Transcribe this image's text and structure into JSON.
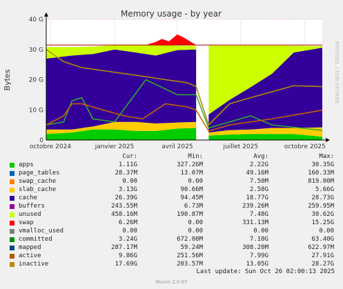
{
  "chart_data": {
    "type": "area",
    "title": "Memory usage - by year",
    "ylabel": "Bytes",
    "watermark": "RRDTOOL / TOBI OETIKER",
    "ylim": [
      0,
      40
    ],
    "yunit": "G",
    "y_ticks": [
      "0",
      "10 G",
      "20 G",
      "30 G",
      "40 G"
    ],
    "x_ticks": [
      "octobre 2024",
      "janvier 2025",
      "avril 2025",
      "juillet 2025",
      "octobre 2025"
    ],
    "no_data_gap": [
      "2025-04-28",
      "2025-05-16"
    ],
    "reference_line_G": 31.5,
    "stacked_areas": [
      {
        "name": "apps",
        "color": "#00cc00",
        "x": [
          "2024-09-25",
          "2024-11-01",
          "2024-12-01",
          "2025-01-01",
          "2025-02-01",
          "2025-03-01",
          "2025-04-01",
          "2025-04-28",
          "2025-05-16",
          "2025-06-15",
          "2025-07-15",
          "2025-08-15",
          "2025-09-15",
          "2025-10-26"
        ],
        "y": [
          2.0,
          2.5,
          3.5,
          3.5,
          3.0,
          3.0,
          3.8,
          4.0,
          1.5,
          1.8,
          2.0,
          2.0,
          2.0,
          1.1
        ]
      },
      {
        "name": "slab_cache",
        "color": "#ffcc00",
        "x": [
          "2024-09-25",
          "2024-11-01",
          "2024-12-01",
          "2025-01-01",
          "2025-02-01",
          "2025-03-01",
          "2025-04-01",
          "2025-04-28",
          "2025-05-16",
          "2025-06-15",
          "2025-07-15",
          "2025-08-15",
          "2025-09-15",
          "2025-10-26"
        ],
        "y": [
          1.5,
          1.0,
          1.0,
          2.5,
          3.0,
          2.5,
          2.0,
          2.0,
          1.0,
          1.5,
          1.5,
          2.0,
          2.0,
          3.1
        ]
      },
      {
        "name": "cache",
        "color": "#330099",
        "x": [
          "2024-09-25",
          "2024-11-01",
          "2024-12-01",
          "2025-01-01",
          "2025-02-01",
          "2025-03-01",
          "2025-04-01",
          "2025-04-28",
          "2025-05-16",
          "2025-06-15",
          "2025-07-15",
          "2025-08-15",
          "2025-09-15",
          "2025-10-26"
        ],
        "y": [
          23.5,
          24.5,
          24.0,
          24.0,
          23.0,
          22.5,
          24.0,
          24.0,
          6.0,
          10.0,
          14.0,
          18.0,
          25.0,
          26.4
        ]
      },
      {
        "name": "unused",
        "color": "#ccff00",
        "x": [
          "2024-09-25",
          "2024-11-01",
          "2024-12-01",
          "2025-01-01",
          "2025-02-01",
          "2025-03-01",
          "2025-04-01",
          "2025-04-28",
          "2025-05-16",
          "2025-06-15",
          "2025-07-15",
          "2025-08-15",
          "2025-09-15",
          "2025-10-26"
        ],
        "y": [
          3.8,
          2.8,
          2.5,
          1.5,
          2.5,
          3.5,
          1.5,
          1.2,
          22.8,
          18.0,
          13.8,
          9.3,
          2.3,
          0.5
        ]
      }
    ],
    "lines": [
      {
        "name": "committed",
        "color": "#33aa33",
        "x": [
          "2024-09-25",
          "2024-10-20",
          "2024-11-01",
          "2024-11-15",
          "2024-12-01",
          "2025-01-01",
          "2025-02-15",
          "2025-04-01",
          "2025-04-28",
          "2025-05-16",
          "2025-06-15",
          "2025-07-15",
          "2025-08-15",
          "2025-10-26"
        ],
        "y": [
          5,
          6,
          13,
          14,
          7,
          6,
          20,
          15,
          15,
          4,
          6,
          8,
          5,
          3.2
        ]
      },
      {
        "name": "active",
        "color": "#c86400",
        "x": [
          "2024-09-25",
          "2024-10-20",
          "2024-11-01",
          "2024-11-15",
          "2024-12-15",
          "2025-01-15",
          "2025-02-10",
          "2025-03-15",
          "2025-04-15",
          "2025-04-28",
          "2025-05-16",
          "2025-06-15",
          "2025-07-15",
          "2025-08-15",
          "2025-10-26"
        ],
        "y": [
          5,
          8,
          12,
          12,
          10,
          8,
          7,
          12,
          11,
          9.9,
          3,
          5,
          6,
          7,
          9.9
        ]
      },
      {
        "name": "inactive",
        "color": "#b09000",
        "x": [
          "2024-09-25",
          "2024-10-20",
          "2024-11-15",
          "2024-12-15",
          "2025-01-15",
          "2025-02-15",
          "2025-03-15",
          "2025-04-15",
          "2025-04-28",
          "2025-05-16",
          "2025-06-15",
          "2025-07-15",
          "2025-08-15",
          "2025-09-15",
          "2025-10-26"
        ],
        "y": [
          30,
          26,
          24,
          23,
          22,
          21,
          20,
          19,
          17.7,
          5,
          12,
          14,
          16,
          18,
          17.7
        ]
      },
      {
        "name": "swap",
        "color": "#ff0000",
        "x": [
          "2024-09-25",
          "2025-02-15",
          "2025-03-01",
          "2025-03-10",
          "2025-03-20",
          "2025-04-01",
          "2025-04-10",
          "2025-04-28"
        ],
        "y": [
          0,
          0,
          1,
          2,
          1.2,
          3.5,
          2.5,
          0
        ]
      }
    ]
  },
  "header": {
    "title": "Memory usage - by year",
    "ylabel": "Bytes",
    "watermark": "RRDTOOL / TOBI OETIKER"
  },
  "legend": {
    "columns": [
      "Cur:",
      "Min:",
      "Avg:",
      "Max:"
    ],
    "rows": [
      {
        "name": "apps",
        "color": "#00cc00",
        "cur": "1.11G",
        "min": "327.26M",
        "avg": "2.22G",
        "max": "30.35G"
      },
      {
        "name": "page_tables",
        "color": "#0066b3",
        "cur": "28.37M",
        "min": "13.07M",
        "avg": "49.16M",
        "max": "160.33M"
      },
      {
        "name": "swap_cache",
        "color": "#ff8000",
        "cur": "0.00",
        "min": "0.00",
        "avg": "7.50M",
        "max": "819.00M"
      },
      {
        "name": "slab_cache",
        "color": "#ffcc00",
        "cur": "3.13G",
        "min": "90.66M",
        "avg": "2.58G",
        "max": "5.66G"
      },
      {
        "name": "cache",
        "color": "#330099",
        "cur": "26.39G",
        "min": "94.45M",
        "avg": "18.77G",
        "max": "28.73G"
      },
      {
        "name": "buffers",
        "color": "#990099",
        "cur": "243.55M",
        "min": "6.73M",
        "avg": "239.26M",
        "max": "259.95M"
      },
      {
        "name": "unused",
        "color": "#ccff00",
        "cur": "458.16M",
        "min": "190.87M",
        "avg": "7.48G",
        "max": "30.62G"
      },
      {
        "name": "swap",
        "color": "#ff0000",
        "cur": "6.26M",
        "min": "0.00",
        "avg": "331.13M",
        "max": "15.25G"
      },
      {
        "name": "vmalloc_used",
        "color": "#808080",
        "cur": "0.00",
        "min": "0.00",
        "avg": "0.00",
        "max": "0.00"
      },
      {
        "name": "committed",
        "color": "#008f00",
        "cur": "3.24G",
        "min": "672.00M",
        "avg": "7.10G",
        "max": "63.40G"
      },
      {
        "name": "mapped",
        "color": "#00487d",
        "cur": "287.17M",
        "min": "59.24M",
        "avg": "308.20M",
        "max": "622.97M"
      },
      {
        "name": "active",
        "color": "#b35a00",
        "cur": "9.86G",
        "min": "251.56M",
        "avg": "7.99G",
        "max": "27.91G"
      },
      {
        "name": "inactive",
        "color": "#b38f00",
        "cur": "17.69G",
        "min": "203.57M",
        "avg": "13.05G",
        "max": "28.27G"
      }
    ]
  },
  "footer": {
    "last_update": "Last update: Sun Oct 26 02:00:13 2025",
    "version": "Munin 2.0.67"
  }
}
